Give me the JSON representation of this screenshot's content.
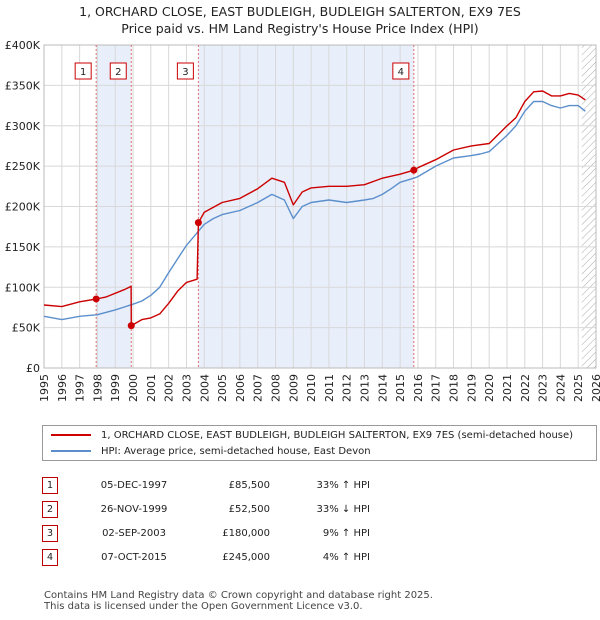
{
  "title_line1": "1, ORCHARD CLOSE, EAST BUDLEIGH, BUDLEIGH SALTERTON, EX9 7ES",
  "title_line2": "Price paid vs. HM Land Registry's House Price Index (HPI)",
  "legend": {
    "red": "1, ORCHARD CLOSE, EAST BUDLEIGH, BUDLEIGH SALTERTON, EX9 7ES (semi-detached house)",
    "blue": "HPI: Average price, semi-detached house, East Devon"
  },
  "colors": {
    "red": "#cc0000",
    "blue": "#5b8fcc",
    "band": "#e8eefa",
    "grid": "#d8d8d8",
    "vline": "#e07070"
  },
  "sales": [
    {
      "num": "1",
      "date": "05-DEC-1997",
      "price": "£85,500",
      "hpi": "33% ↑ HPI"
    },
    {
      "num": "2",
      "date": "26-NOV-1999",
      "price": "£52,500",
      "hpi": "33% ↓ HPI"
    },
    {
      "num": "3",
      "date": "02-SEP-2003",
      "price": "£180,000",
      "hpi": "9% ↑ HPI"
    },
    {
      "num": "4",
      "date": "07-OCT-2015",
      "price": "£245,000",
      "hpi": "4% ↑ HPI"
    }
  ],
  "footer_line1": "Contains HM Land Registry data © Crown copyright and database right 2025.",
  "footer_line2": "This data is licensed under the Open Government Licence v3.0.",
  "chart_data": {
    "type": "line",
    "title": "Price paid vs. HM Land Registry's House Price Index (HPI)",
    "xlim": [
      1995,
      2026
    ],
    "ylim": [
      0,
      400000
    ],
    "x_ticks": [
      "1995",
      "1996",
      "1997",
      "1998",
      "1999",
      "2000",
      "2001",
      "2002",
      "2003",
      "2004",
      "2005",
      "2006",
      "2007",
      "2008",
      "2009",
      "2010",
      "2011",
      "2012",
      "2013",
      "2014",
      "2015",
      "2016",
      "2017",
      "2018",
      "2019",
      "2020",
      "2021",
      "2022",
      "2023",
      "2024",
      "2025",
      "2026"
    ],
    "y_ticks": [
      {
        "v": 0,
        "label": "£0"
      },
      {
        "v": 50000,
        "label": "£50K"
      },
      {
        "v": 100000,
        "label": "£100K"
      },
      {
        "v": 150000,
        "label": "£150K"
      },
      {
        "v": 200000,
        "label": "£200K"
      },
      {
        "v": 250000,
        "label": "£250K"
      },
      {
        "v": 300000,
        "label": "£300K"
      },
      {
        "v": 350000,
        "label": "£350K"
      },
      {
        "v": 400000,
        "label": "£400K"
      }
    ],
    "sale_markers": [
      {
        "label": "1",
        "x": 1997.93,
        "y": 85500
      },
      {
        "label": "2",
        "x": 1999.9,
        "y": 52500
      },
      {
        "label": "3",
        "x": 2003.67,
        "y": 180000
      },
      {
        "label": "4",
        "x": 2015.77,
        "y": 245000
      }
    ],
    "shaded_ranges": [
      [
        1997.93,
        1999.9
      ],
      [
        2003.67,
        2015.77
      ]
    ],
    "hatched_from": 2025.2,
    "series": [
      {
        "name": "HPI: Average price, semi-detached house, East Devon",
        "color": "#5b8fcc",
        "x": [
          1995,
          1996,
          1997,
          1998,
          1999,
          2000,
          2000.5,
          2001,
          2001.5,
          2002,
          2002.5,
          2003,
          2003.5,
          2004,
          2004.5,
          2005,
          2006,
          2007,
          2007.8,
          2008.5,
          2009,
          2009.5,
          2010,
          2011,
          2012,
          2013,
          2013.5,
          2014,
          2014.5,
          2015,
          2015.77,
          2016,
          2017,
          2018,
          2019,
          2019.5,
          2020,
          2020.5,
          2021,
          2021.5,
          2022,
          2022.5,
          2023,
          2023.5,
          2024,
          2024.5,
          2025,
          2025.4
        ],
        "y": [
          64000,
          60000,
          64000,
          66000,
          72000,
          79000,
          83000,
          90000,
          100000,
          118000,
          135000,
          152000,
          165000,
          178000,
          185000,
          190000,
          195000,
          205000,
          215000,
          208000,
          185000,
          200000,
          205000,
          208000,
          205000,
          208000,
          210000,
          215000,
          222000,
          230000,
          235000,
          237000,
          250000,
          260000,
          263000,
          265000,
          268000,
          278000,
          288000,
          300000,
          318000,
          330000,
          330000,
          325000,
          322000,
          325000,
          325000,
          318000
        ]
      },
      {
        "name": "1, ORCHARD CLOSE, EAST BUDLEIGH, BUDLEIGH SALTERTON, EX9 7ES (semi-detached house)",
        "color": "#cc0000",
        "x": [
          1995,
          1996,
          1997,
          1997.93,
          1998.5,
          1999.5,
          1999.89,
          1999.9,
          2000.5,
          2001,
          2001.5,
          2002,
          2002.5,
          2003,
          2003.6,
          2003.67,
          2004,
          2005,
          2006,
          2007,
          2007.8,
          2008.5,
          2009,
          2009.5,
          2010,
          2011,
          2012,
          2013,
          2014,
          2015,
          2015.77,
          2016,
          2017,
          2018,
          2019,
          2020,
          2021,
          2021.5,
          2022,
          2022.5,
          2023,
          2023.5,
          2024,
          2024.5,
          2025,
          2025.4
        ],
        "y": [
          78000,
          76000,
          82000,
          85500,
          88000,
          97000,
          101000,
          52500,
          60000,
          62000,
          67000,
          80000,
          95000,
          106000,
          110000,
          180000,
          193000,
          205000,
          210000,
          222000,
          235000,
          230000,
          202000,
          218000,
          223000,
          225000,
          225000,
          227000,
          235000,
          240000,
          245000,
          248000,
          258000,
          270000,
          275000,
          278000,
          300000,
          310000,
          330000,
          342000,
          343000,
          337000,
          337000,
          340000,
          338000,
          332000
        ]
      }
    ]
  }
}
